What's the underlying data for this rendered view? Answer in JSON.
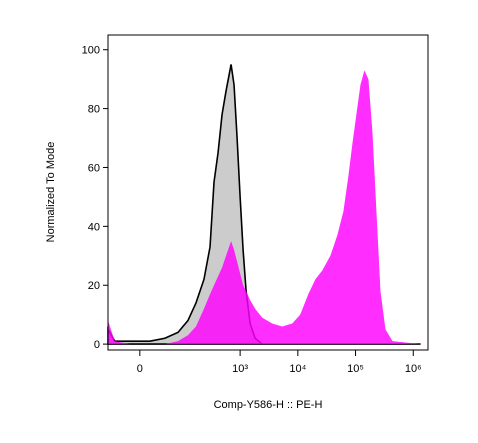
{
  "chart_data": {
    "type": "area",
    "xlabel": "Comp-Y586-H :: PE-H",
    "ylabel": "Normalized To Mode",
    "xscale": "biexponential",
    "xlim": [
      -60,
      1800000
    ],
    "xticks": [
      0,
      {
        "value": 1000,
        "label": "10³"
      },
      {
        "value": 10000,
        "label": "10⁴"
      },
      {
        "value": 100000,
        "label": "10⁵"
      },
      {
        "value": 1000000,
        "label": "10⁶"
      }
    ],
    "ylim": [
      -2,
      105
    ],
    "yticks": [
      0,
      20,
      40,
      60,
      80,
      100
    ],
    "x": [
      -60,
      -43,
      -15,
      15,
      43,
      80,
      122,
      170,
      235,
      300,
      352,
      414,
      486,
      570,
      697,
      785,
      886,
      1000,
      1126,
      1270,
      1490,
      1820,
      2410,
      3590,
      5360,
      8000,
      11000,
      15200,
      20100,
      26500,
      36600,
      48400,
      61500,
      75100,
      88100,
      103400,
      121400,
      142500,
      167200,
      196200,
      230200,
      270200,
      330000,
      436600,
      1338000
    ],
    "series": [
      {
        "color": "#cccccc",
        "values": [
          5,
          1,
          1,
          1,
          2,
          4,
          8,
          14,
          22,
          33,
          55,
          65,
          78,
          86,
          95,
          88,
          70,
          50,
          32,
          18,
          7,
          2,
          0,
          0,
          0,
          0,
          0,
          0,
          0,
          0,
          0,
          0,
          0,
          0,
          0,
          0,
          0,
          0,
          0,
          0,
          0,
          0,
          0,
          0,
          0
        ]
      },
      {
        "color": "#ff00ff",
        "values": [
          8,
          1,
          0,
          0,
          0,
          1,
          3,
          6,
          12,
          17,
          20,
          23,
          26,
          30,
          35,
          32,
          28,
          24,
          20,
          18,
          15,
          12,
          9,
          7,
          6,
          7,
          10,
          17,
          22,
          25,
          30,
          37,
          45,
          57,
          68,
          78,
          88,
          93,
          90,
          72,
          45,
          18,
          5,
          1,
          0
        ]
      }
    ]
  }
}
